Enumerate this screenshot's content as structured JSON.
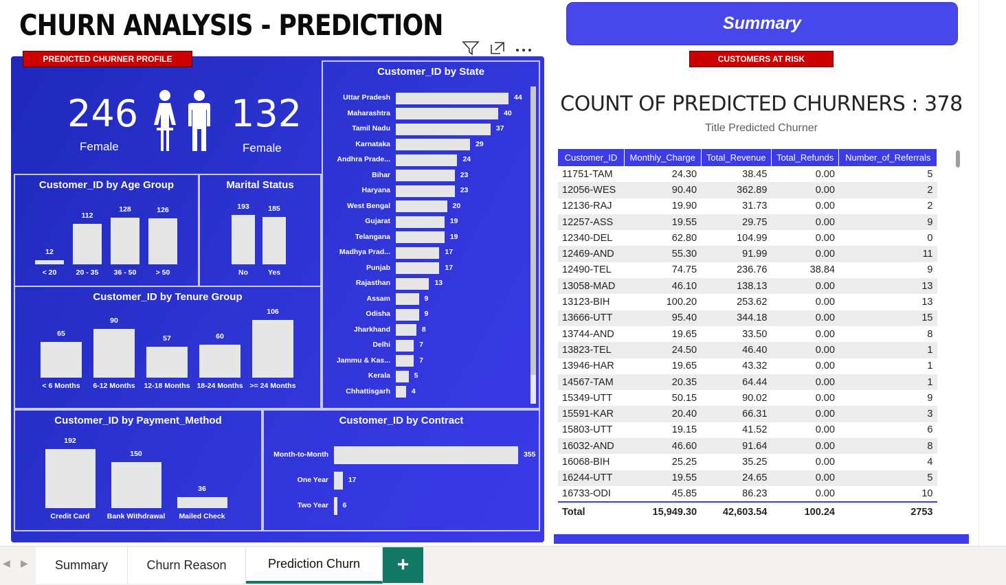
{
  "title": "CHURN ANALYSIS - PREDICTION",
  "summary_button": "Summary",
  "tags": {
    "profile": "PREDICTED CHURNER PROFILE",
    "at_risk": "CUSTOMERS AT RISK"
  },
  "kpi": {
    "left_value": "246",
    "left_label": "Female",
    "right_value": "132",
    "right_label": "Female"
  },
  "charts": {
    "age": {
      "title": "Customer_ID by Age Group",
      "categories": [
        "< 20",
        "20 - 35",
        "36 - 50",
        "> 50"
      ],
      "values": [
        12,
        112,
        128,
        126
      ]
    },
    "marital": {
      "title": "Marital Status",
      "categories": [
        "No",
        "Yes"
      ],
      "values": [
        193,
        185
      ]
    },
    "tenure": {
      "title": "Customer_ID by Tenure Group",
      "categories": [
        "< 6 Months",
        "6-12 Months",
        "12-18 Months",
        "18-24 Months",
        ">= 24 Months"
      ],
      "values": [
        65,
        90,
        57,
        60,
        106
      ]
    },
    "payment": {
      "title": "Customer_ID by Payment_Method",
      "categories": [
        "Credit Card",
        "Bank Withdrawal",
        "Mailed Check"
      ],
      "values": [
        192,
        150,
        36
      ]
    },
    "contract": {
      "title": "Customer_ID by Contract",
      "categories": [
        "Month-to-Month",
        "One Year",
        "Two Year"
      ],
      "values": [
        355,
        17,
        6
      ]
    },
    "state": {
      "title": "Customer_ID by State",
      "categories": [
        "Uttar Pradesh",
        "Maharashtra",
        "Tamil Nadu",
        "Karnataka",
        "Andhra Prade...",
        "Bihar",
        "Haryana",
        "West Bengal",
        "Gujarat",
        "Telangana",
        "Madhya Prad...",
        "Punjab",
        "Rajasthan",
        "Assam",
        "Odisha",
        "Jharkhand",
        "Delhi",
        "Jammu & Kas...",
        "Kerala",
        "Chhattisgarh"
      ],
      "values": [
        44,
        40,
        37,
        29,
        24,
        23,
        23,
        20,
        19,
        19,
        17,
        17,
        13,
        9,
        9,
        8,
        7,
        7,
        5,
        4
      ]
    }
  },
  "chart_data": [
    {
      "type": "bar",
      "title": "Customer_ID by Age Group",
      "categories": [
        "< 20",
        "20 - 35",
        "36 - 50",
        "> 50"
      ],
      "values": [
        12,
        112,
        128,
        126
      ]
    },
    {
      "type": "bar",
      "title": "Marital Status",
      "categories": [
        "No",
        "Yes"
      ],
      "values": [
        193,
        185
      ]
    },
    {
      "type": "bar",
      "title": "Customer_ID by Tenure Group",
      "categories": [
        "< 6 Months",
        "6-12 Months",
        "12-18 Months",
        "18-24 Months",
        ">= 24 Months"
      ],
      "values": [
        65,
        90,
        57,
        60,
        106
      ]
    },
    {
      "type": "bar",
      "title": "Customer_ID by Payment_Method",
      "categories": [
        "Credit Card",
        "Bank Withdrawal",
        "Mailed Check"
      ],
      "values": [
        192,
        150,
        36
      ]
    },
    {
      "type": "bar",
      "title": "Customer_ID by Contract",
      "categories": [
        "Month-to-Month",
        "One Year",
        "Two Year"
      ],
      "values": [
        355,
        17,
        6
      ]
    },
    {
      "type": "bar",
      "title": "Customer_ID by State",
      "categories": [
        "Uttar Pradesh",
        "Maharashtra",
        "Tamil Nadu",
        "Karnataka",
        "Andhra Prade...",
        "Bihar",
        "Haryana",
        "West Bengal",
        "Gujarat",
        "Telangana",
        "Madhya Prad...",
        "Punjab",
        "Rajasthan",
        "Assam",
        "Odisha",
        "Jharkhand",
        "Delhi",
        "Jammu & Kas...",
        "Kerala",
        "Chhattisgarh"
      ],
      "values": [
        44,
        40,
        37,
        29,
        24,
        23,
        23,
        20,
        19,
        19,
        17,
        17,
        13,
        9,
        9,
        8,
        7,
        7,
        5,
        4
      ]
    }
  ],
  "count_title": "COUNT OF PREDICTED CHURNERS : 378",
  "count_subtitle": "Title Predicted Churner",
  "table": {
    "headers": [
      "Customer_ID",
      "Monthly_Charge",
      "Total_Revenue",
      "Total_Refunds",
      "Number_of_Referrals"
    ],
    "rows": [
      [
        "11751-TAM",
        "24.30",
        "38.45",
        "0.00",
        "5"
      ],
      [
        "12056-WES",
        "90.40",
        "362.89",
        "0.00",
        "2"
      ],
      [
        "12136-RAJ",
        "19.90",
        "31.73",
        "0.00",
        "2"
      ],
      [
        "12257-ASS",
        "19.55",
        "29.75",
        "0.00",
        "9"
      ],
      [
        "12340-DEL",
        "62.80",
        "104.99",
        "0.00",
        "0"
      ],
      [
        "12469-AND",
        "55.30",
        "91.99",
        "0.00",
        "11"
      ],
      [
        "12490-TEL",
        "74.75",
        "236.76",
        "38.84",
        "9"
      ],
      [
        "13058-MAD",
        "46.10",
        "138.13",
        "0.00",
        "13"
      ],
      [
        "13123-BIH",
        "100.20",
        "253.62",
        "0.00",
        "13"
      ],
      [
        "13666-UTT",
        "95.40",
        "344.18",
        "0.00",
        "15"
      ],
      [
        "13744-AND",
        "19.65",
        "33.50",
        "0.00",
        "8"
      ],
      [
        "13823-TEL",
        "24.50",
        "46.40",
        "0.00",
        "1"
      ],
      [
        "13946-HAR",
        "19.65",
        "43.32",
        "0.00",
        "1"
      ],
      [
        "14567-TAM",
        "20.35",
        "64.44",
        "0.00",
        "1"
      ],
      [
        "15349-UTT",
        "50.15",
        "90.02",
        "0.00",
        "9"
      ],
      [
        "15591-KAR",
        "20.40",
        "66.31",
        "0.00",
        "3"
      ],
      [
        "15803-UTT",
        "19.15",
        "41.52",
        "0.00",
        "6"
      ],
      [
        "16032-AND",
        "46.60",
        "91.64",
        "0.00",
        "8"
      ],
      [
        "16068-BIH",
        "25.25",
        "35.25",
        "0.00",
        "4"
      ],
      [
        "16244-UTT",
        "19.55",
        "24.65",
        "0.00",
        "5"
      ],
      [
        "16733-ODI",
        "45.85",
        "86.23",
        "0.00",
        "10"
      ]
    ],
    "total": [
      "Total",
      "15,949.30",
      "42,603.54",
      "100.24",
      "2753"
    ]
  },
  "tabs": [
    "Summary",
    "Churn Reason",
    "Prediction Churn"
  ],
  "active_tab": "Prediction Churn",
  "add_tab": "+",
  "icons": [
    "filter-icon",
    "focus-mode-icon",
    "more-options-icon",
    "female-icon",
    "male-icon",
    "plus-icon"
  ],
  "colors": {
    "panel": "#2d34d2",
    "tag": "#cc0000",
    "header": "#3b3be8",
    "tab_accent": "#117865",
    "bar": "#e6e6e6"
  }
}
